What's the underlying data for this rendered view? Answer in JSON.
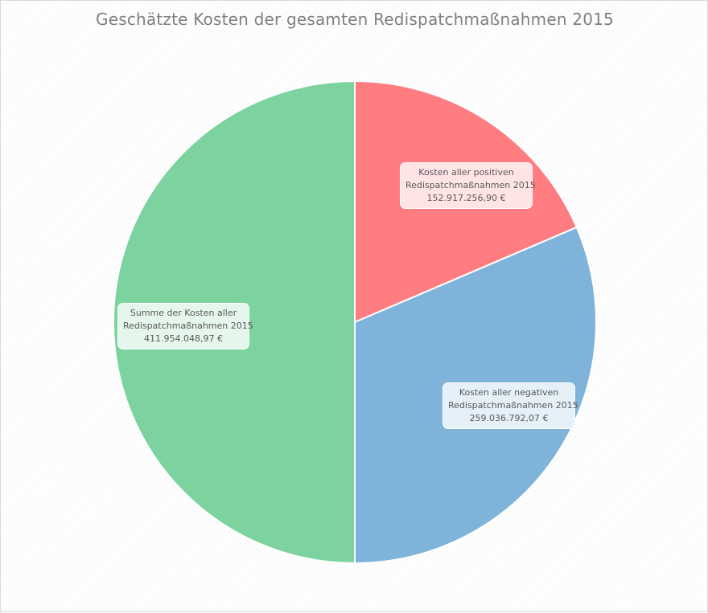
{
  "chart_data": {
    "type": "pie",
    "title": "Geschätzte Kosten der gesamten Redispatchmaßnahmen 2015",
    "slices": [
      {
        "label_line1": "Kosten aller positiven",
        "label_line2": "Redispatchmaßnahmen 2015",
        "value_text": "152.917.256,90 €",
        "value": 152917256.9,
        "color": "#ff7c80",
        "label_bg": "#ffe4e5"
      },
      {
        "label_line1": "Kosten aller negativen",
        "label_line2": "Redispatchmaßnahmen 2015",
        "value_text": "259.036.792,07 €",
        "value": 259036792.07,
        "color": "#7fb3d9",
        "label_bg": "#e5f0f8"
      },
      {
        "label_line1": "Summe der Kosten aller",
        "label_line2": "Redispatchmaßnahmen 2015",
        "value_text": "411.954.048,97 €",
        "value": 411954048.97,
        "color": "#7dd39f",
        "label_bg": "#e5f6ec"
      }
    ],
    "start_angle": 0,
    "direction": "clockwise",
    "legend": "none"
  }
}
